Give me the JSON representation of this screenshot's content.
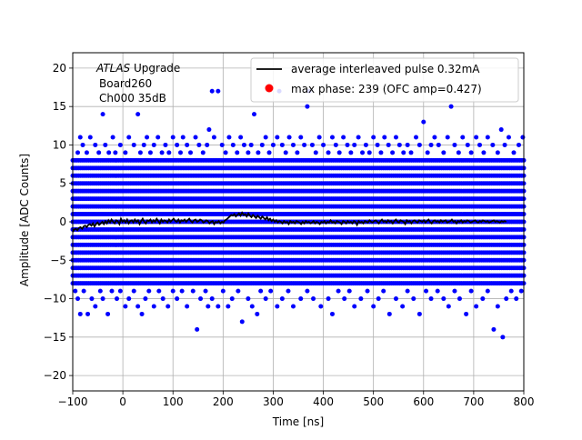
{
  "chart_data": {
    "type": "scatter",
    "xlabel": "Time [ns]",
    "ylabel": "Amplitude [ADC Counts]",
    "xlim": [
      -100,
      800
    ],
    "ylim": [
      -22,
      22
    ],
    "grid": true,
    "x_ticks": [
      -100,
      0,
      100,
      200,
      300,
      400,
      500,
      600,
      700,
      800
    ],
    "y_ticks": [
      -20,
      -15,
      -10,
      -5,
      0,
      5,
      10,
      15,
      20
    ],
    "legend_placement": "top-right",
    "annotation": {
      "line1_italic": "ATLAS",
      "line1_rest": " Upgrade",
      "line2": "Board260",
      "line3": "Ch000 35dB"
    },
    "series": [
      {
        "name": "average interleaved pulse 0.32mA",
        "kind": "line",
        "color": "#000000",
        "x_step": 3.1,
        "y": [
          -1.3,
          -1.0,
          -0.9,
          -1.1,
          -0.8,
          -0.7,
          -0.9,
          -0.6,
          -0.5,
          -0.7,
          -0.4,
          -0.3,
          -0.5,
          -0.2,
          -0.6,
          -0.3,
          -0.1,
          -0.4,
          -0.2,
          0.0,
          -0.3,
          0.1,
          -0.2,
          0.2,
          -0.1,
          0.3,
          0.0,
          -0.2,
          0.2,
          0.1,
          -0.3,
          0.4,
          0.0,
          0.2,
          -0.1,
          0.3,
          -0.2,
          0.1,
          0.2,
          -0.1,
          0.3,
          0.0,
          0.2,
          -0.3,
          0.1,
          0.4,
          0.0,
          -0.2,
          0.2,
          0.1,
          0.3,
          -0.1,
          0.2,
          0.0,
          0.4,
          0.1,
          -0.2,
          0.3,
          0.0,
          0.2,
          0.1,
          -0.1,
          0.3,
          0.0,
          0.2,
          0.4,
          0.1,
          0.0,
          0.3,
          -0.1,
          0.2,
          0.1,
          0.3,
          0.0,
          0.2,
          0.4,
          0.1,
          -0.1,
          0.2,
          0.3,
          0.0,
          0.1,
          0.3,
          0.2,
          -0.1,
          0.0,
          0.2,
          0.1,
          -0.2,
          0.0,
          0.1,
          -0.3,
          0.0,
          -0.1,
          0.1,
          -0.2,
          0.0,
          -0.1,
          0.2,
          0.3,
          0.5,
          0.7,
          0.9,
          0.8,
          1.0,
          0.7,
          0.9,
          1.1,
          0.8,
          1.2,
          0.9,
          1.0,
          0.7,
          1.1,
          0.8,
          0.6,
          0.9,
          0.7,
          0.5,
          0.8,
          0.6,
          0.4,
          0.7,
          0.5,
          0.3,
          0.6,
          0.2,
          0.4,
          0.1,
          0.3,
          0.0,
          0.2,
          -0.1,
          0.1,
          0.0,
          -0.2,
          0.1,
          -0.1,
          0.0,
          -0.3,
          0.1,
          -0.1,
          0.0,
          -0.2,
          0.1,
          0.0,
          -0.1,
          -0.3,
          0.0,
          -0.2,
          0.1,
          -0.1,
          0.0,
          -0.2,
          -0.1,
          0.1,
          -0.2,
          0.0,
          -0.1,
          -0.3,
          0.0,
          -0.1,
          0.1,
          -0.2,
          0.0,
          -0.1,
          0.2,
          -0.1,
          0.0,
          -0.2,
          0.1,
          0.0,
          -0.1,
          -0.3,
          0.1,
          0.0,
          -0.2,
          0.1,
          -0.1,
          0.0,
          -0.2,
          0.1,
          0.0,
          -0.4,
          0.1,
          -0.1,
          0.0,
          -0.2,
          0.1,
          0.0,
          -0.1,
          0.2,
          0.0,
          -0.1,
          0.1,
          0.2,
          0.0,
          -0.2,
          0.1,
          0.3,
          0.0,
          0.1,
          -0.1,
          0.2,
          0.0,
          0.1,
          -0.2,
          0.1,
          0.3,
          0.0,
          -0.1,
          0.2,
          0.1,
          0.0,
          -0.3,
          0.2,
          0.0,
          0.1,
          -0.2,
          0.1,
          0.2,
          0.0,
          -0.1,
          0.2,
          0.1,
          0.0,
          0.2,
          -0.1,
          0.1,
          0.3,
          0.0,
          -0.2,
          0.1,
          0.2,
          0.0,
          0.1,
          -0.1,
          0.2,
          0.0,
          0.1,
          0.2,
          -0.1,
          0.0,
          0.1,
          0.3,
          0.0,
          0.1,
          -0.2,
          0.1,
          0.0,
          0.2,
          -0.1,
          0.1,
          0.0,
          0.2,
          0.1,
          -0.1,
          0.0,
          0.1,
          0.2,
          0.0,
          -0.1,
          0.1,
          0.0,
          0.2,
          0.1,
          0.0,
          0.1,
          -0.1,
          0.0,
          0.1,
          0.2,
          0.0,
          0.1,
          0.0,
          -0.1,
          0.1,
          0.0,
          0.1,
          0.0
        ]
      },
      {
        "name": "max phase: 239 (OFC amp=0.427)",
        "kind": "marker",
        "color": "#ff0000",
        "points": []
      },
      {
        "kind": "scatter",
        "color": "#0000ff",
        "dense_band": {
          "x_range": [
            -100,
            800
          ],
          "levels": [
            -8,
            -7,
            -6,
            -5,
            -4,
            -3,
            -2,
            -1,
            0,
            1,
            2,
            3,
            4,
            5,
            6,
            7,
            8
          ],
          "x_step": 4.0
        },
        "points": [
          [
            -95,
            -9
          ],
          [
            -90,
            -10
          ],
          [
            -85,
            -12
          ],
          [
            -78,
            -9
          ],
          [
            -70,
            -12
          ],
          [
            -62,
            -10
          ],
          [
            -55,
            -11
          ],
          [
            -45,
            -9
          ],
          [
            -40,
            -10
          ],
          [
            -30,
            -12
          ],
          [
            -22,
            -9
          ],
          [
            -12,
            -10
          ],
          [
            -5,
            -9
          ],
          [
            5,
            -11
          ],
          [
            12,
            -10
          ],
          [
            22,
            -9
          ],
          [
            30,
            -11
          ],
          [
            38,
            -12
          ],
          [
            45,
            -10
          ],
          [
            52,
            -9
          ],
          [
            62,
            -11
          ],
          [
            72,
            -9
          ],
          [
            80,
            -10
          ],
          [
            90,
            -11
          ],
          [
            100,
            -9
          ],
          [
            108,
            -10
          ],
          [
            118,
            -9
          ],
          [
            128,
            -11
          ],
          [
            140,
            -9
          ],
          [
            148,
            -14
          ],
          [
            155,
            -10
          ],
          [
            165,
            -9
          ],
          [
            170,
            -11
          ],
          [
            178,
            -10
          ],
          [
            190,
            -11
          ],
          [
            200,
            -9
          ],
          [
            210,
            -11
          ],
          [
            218,
            -10
          ],
          [
            230,
            -9
          ],
          [
            238,
            -13
          ],
          [
            250,
            -10
          ],
          [
            258,
            -11
          ],
          [
            268,
            -12
          ],
          [
            275,
            -9
          ],
          [
            285,
            -10
          ],
          [
            295,
            -9
          ],
          [
            308,
            -11
          ],
          [
            318,
            -10
          ],
          [
            330,
            -9
          ],
          [
            340,
            -11
          ],
          [
            355,
            -10
          ],
          [
            368,
            -9
          ],
          [
            380,
            -10
          ],
          [
            395,
            -11
          ],
          [
            410,
            -10
          ],
          [
            418,
            -12
          ],
          [
            430,
            -9
          ],
          [
            442,
            -10
          ],
          [
            452,
            -9
          ],
          [
            462,
            -11
          ],
          [
            475,
            -10
          ],
          [
            488,
            -9
          ],
          [
            500,
            -11
          ],
          [
            510,
            -10
          ],
          [
            520,
            -9
          ],
          [
            532,
            -12
          ],
          [
            545,
            -10
          ],
          [
            558,
            -11
          ],
          [
            568,
            -9
          ],
          [
            580,
            -10
          ],
          [
            592,
            -12
          ],
          [
            605,
            -9
          ],
          [
            615,
            -10
          ],
          [
            628,
            -9
          ],
          [
            640,
            -10
          ],
          [
            650,
            -11
          ],
          [
            662,
            -9
          ],
          [
            672,
            -10
          ],
          [
            685,
            -12
          ],
          [
            695,
            -9
          ],
          [
            705,
            -11
          ],
          [
            718,
            -10
          ],
          [
            728,
            -9
          ],
          [
            740,
            -14
          ],
          [
            748,
            -11
          ],
          [
            758,
            -15
          ],
          [
            765,
            -10
          ],
          [
            775,
            -9
          ],
          [
            785,
            -10
          ],
          [
            795,
            -9
          ],
          [
            -90,
            9
          ],
          [
            -85,
            11
          ],
          [
            -80,
            10
          ],
          [
            -72,
            9
          ],
          [
            -65,
            11
          ],
          [
            -55,
            10
          ],
          [
            -48,
            9
          ],
          [
            -40,
            14
          ],
          [
            -35,
            10
          ],
          [
            -28,
            9
          ],
          [
            -20,
            11
          ],
          [
            -15,
            9
          ],
          [
            -5,
            10
          ],
          [
            5,
            9
          ],
          [
            12,
            11
          ],
          [
            22,
            10
          ],
          [
            30,
            14
          ],
          [
            35,
            9
          ],
          [
            42,
            10
          ],
          [
            48,
            11
          ],
          [
            55,
            9
          ],
          [
            62,
            10
          ],
          [
            70,
            11
          ],
          [
            78,
            9
          ],
          [
            85,
            10
          ],
          [
            92,
            9
          ],
          [
            100,
            11
          ],
          [
            108,
            10
          ],
          [
            115,
            9
          ],
          [
            120,
            11
          ],
          [
            128,
            10
          ],
          [
            135,
            9
          ],
          [
            145,
            11
          ],
          [
            152,
            10
          ],
          [
            160,
            9
          ],
          [
            168,
            10
          ],
          [
            172,
            12
          ],
          [
            178,
            17
          ],
          [
            182,
            11
          ],
          [
            190,
            17
          ],
          [
            198,
            10
          ],
          [
            205,
            9
          ],
          [
            212,
            11
          ],
          [
            220,
            10
          ],
          [
            228,
            9
          ],
          [
            235,
            11
          ],
          [
            242,
            10
          ],
          [
            250,
            9
          ],
          [
            256,
            10
          ],
          [
            262,
            14
          ],
          [
            270,
            9
          ],
          [
            278,
            10
          ],
          [
            285,
            11
          ],
          [
            292,
            9
          ],
          [
            300,
            10
          ],
          [
            308,
            11
          ],
          [
            312,
            17
          ],
          [
            318,
            10
          ],
          [
            325,
            9
          ],
          [
            332,
            11
          ],
          [
            340,
            10
          ],
          [
            348,
            9
          ],
          [
            355,
            11
          ],
          [
            362,
            10
          ],
          [
            368,
            15
          ],
          [
            372,
            17
          ],
          [
            378,
            10
          ],
          [
            385,
            9
          ],
          [
            392,
            11
          ],
          [
            400,
            10
          ],
          [
            410,
            9
          ],
          [
            418,
            11
          ],
          [
            425,
            10
          ],
          [
            432,
            9
          ],
          [
            440,
            11
          ],
          [
            448,
            10
          ],
          [
            455,
            9
          ],
          [
            462,
            10
          ],
          [
            470,
            11
          ],
          [
            478,
            9
          ],
          [
            485,
            10
          ],
          [
            492,
            9
          ],
          [
            500,
            11
          ],
          [
            508,
            10
          ],
          [
            515,
            9
          ],
          [
            522,
            11
          ],
          [
            530,
            10
          ],
          [
            538,
            9
          ],
          [
            545,
            11
          ],
          [
            552,
            10
          ],
          [
            560,
            9
          ],
          [
            568,
            10
          ],
          [
            575,
            9
          ],
          [
            585,
            11
          ],
          [
            592,
            10
          ],
          [
            600,
            13
          ],
          [
            608,
            9
          ],
          [
            615,
            10
          ],
          [
            622,
            11
          ],
          [
            630,
            10
          ],
          [
            640,
            9
          ],
          [
            648,
            11
          ],
          [
            655,
            15
          ],
          [
            662,
            10
          ],
          [
            670,
            9
          ],
          [
            678,
            11
          ],
          [
            688,
            10
          ],
          [
            695,
            9
          ],
          [
            705,
            11
          ],
          [
            712,
            10
          ],
          [
            720,
            9
          ],
          [
            728,
            11
          ],
          [
            738,
            10
          ],
          [
            748,
            9
          ],
          [
            755,
            12
          ],
          [
            762,
            10
          ],
          [
            770,
            11
          ],
          [
            780,
            9
          ],
          [
            790,
            10
          ],
          [
            798,
            11
          ]
        ]
      }
    ]
  }
}
